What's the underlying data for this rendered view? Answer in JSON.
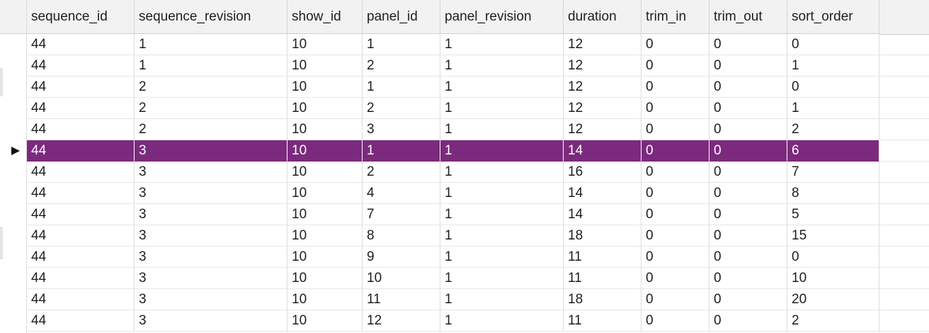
{
  "table": {
    "columns": [
      "sequence_id",
      "sequence_revision",
      "show_id",
      "panel_id",
      "panel_revision",
      "duration",
      "trim_in",
      "trim_out",
      "sort_order"
    ],
    "rows": [
      [
        44,
        1,
        10,
        1,
        1,
        12,
        0,
        0,
        0
      ],
      [
        44,
        1,
        10,
        2,
        1,
        12,
        0,
        0,
        1
      ],
      [
        44,
        2,
        10,
        1,
        1,
        12,
        0,
        0,
        0
      ],
      [
        44,
        2,
        10,
        2,
        1,
        12,
        0,
        0,
        1
      ],
      [
        44,
        2,
        10,
        3,
        1,
        12,
        0,
        0,
        2
      ],
      [
        44,
        3,
        10,
        1,
        1,
        14,
        0,
        0,
        6
      ],
      [
        44,
        3,
        10,
        2,
        1,
        16,
        0,
        0,
        7
      ],
      [
        44,
        3,
        10,
        4,
        1,
        14,
        0,
        0,
        8
      ],
      [
        44,
        3,
        10,
        7,
        1,
        14,
        0,
        0,
        5
      ],
      [
        44,
        3,
        10,
        8,
        1,
        18,
        0,
        0,
        15
      ],
      [
        44,
        3,
        10,
        9,
        1,
        11,
        0,
        0,
        0
      ],
      [
        44,
        3,
        10,
        10,
        1,
        11,
        0,
        0,
        10
      ],
      [
        44,
        3,
        10,
        11,
        1,
        18,
        0,
        0,
        20
      ],
      [
        44,
        3,
        10,
        12,
        1,
        11,
        0,
        0,
        2
      ]
    ],
    "selected_row": 5
  }
}
